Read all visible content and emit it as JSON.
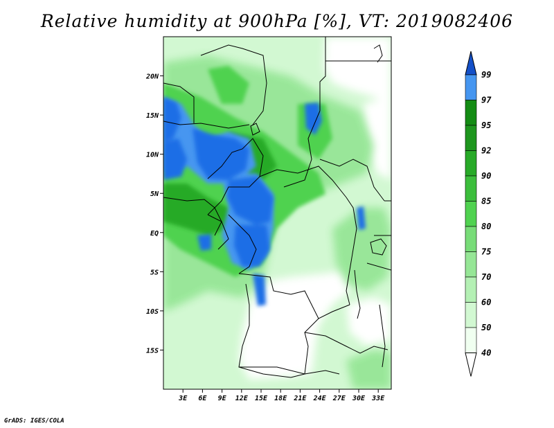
{
  "title": "Relative humidity at 900hPa [%], VT: 2019082406",
  "credit": "GrADS: IGES/COLA",
  "map": {
    "lon_range": [
      0,
      35
    ],
    "lat_range": [
      -20,
      25
    ],
    "lat_ticks": [
      {
        "lat": 20,
        "label": "20N"
      },
      {
        "lat": 15,
        "label": "15N"
      },
      {
        "lat": 10,
        "label": "10N"
      },
      {
        "lat": 5,
        "label": "5N"
      },
      {
        "lat": 0,
        "label": "EQ"
      },
      {
        "lat": -5,
        "label": "5S"
      },
      {
        "lat": -10,
        "label": "10S"
      },
      {
        "lat": -15,
        "label": "15S"
      }
    ],
    "lon_ticks": [
      {
        "lon": 3,
        "label": "3E"
      },
      {
        "lon": 6,
        "label": "6E"
      },
      {
        "lon": 9,
        "label": "9E"
      },
      {
        "lon": 12,
        "label": "12E"
      },
      {
        "lon": 15,
        "label": "15E"
      },
      {
        "lon": 18,
        "label": "18E"
      },
      {
        "lon": 21,
        "label": "21E"
      },
      {
        "lon": 24,
        "label": "24E"
      },
      {
        "lon": 27,
        "label": "27E"
      },
      {
        "lon": 30,
        "label": "30E"
      },
      {
        "lon": 33,
        "label": "33E"
      }
    ]
  },
  "colorbar": {
    "levels": [
      {
        "label": "40",
        "color": "#f0fff0"
      },
      {
        "label": "50",
        "color": "#d2f8d2"
      },
      {
        "label": "60",
        "color": "#b4f0b4"
      },
      {
        "label": "70",
        "color": "#96e696"
      },
      {
        "label": "75",
        "color": "#78dc78"
      },
      {
        "label": "80",
        "color": "#50d250"
      },
      {
        "label": "85",
        "color": "#3cbe3c"
      },
      {
        "label": "90",
        "color": "#28aa28"
      },
      {
        "label": "92",
        "color": "#1e961e"
      },
      {
        "label": "95",
        "color": "#148c14"
      },
      {
        "label": "97",
        "color": "#4696f0"
      },
      {
        "label": "99",
        "color": "#1e6ee6"
      }
    ],
    "below_color": "#ffffff",
    "above_color": "#1450c8"
  },
  "regions": {
    "dry_color": "#ffffff",
    "green_light": "#d2f8d2",
    "green_mid": "#96e696",
    "green_high": "#50d250",
    "green_dark": "#28aa28",
    "blue_light": "#4696f0",
    "blue_dark": "#1e6ee6"
  }
}
